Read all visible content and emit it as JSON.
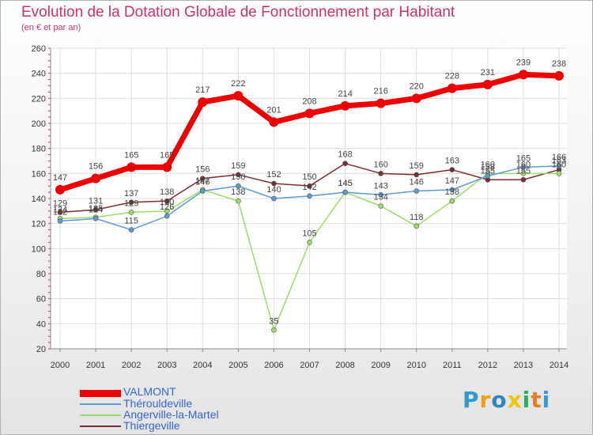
{
  "title": "Evolution de la Dotation Globale de Fonctionnement par Habitant",
  "subtitle": "(en € et par an)",
  "logo": {
    "text": "Proxiti",
    "colors": [
      "#3399cc",
      "#f39c12",
      "#2e86c1",
      "#f1c40f",
      "#27ae60",
      "#e67e22",
      "#3498db"
    ]
  },
  "chart_data": {
    "type": "line",
    "title": "Evolution de la Dotation Globale de Fonctionnement par Habitant",
    "subtitle": "(en € et par an)",
    "x": [
      "2000",
      "2001",
      "2002",
      "2003",
      "2004",
      "2005",
      "2006",
      "2007",
      "2008",
      "2009",
      "2010",
      "2011",
      "2012",
      "2013",
      "2014"
    ],
    "yticks": [
      20,
      40,
      60,
      80,
      100,
      120,
      140,
      160,
      180,
      200,
      220,
      240,
      260
    ],
    "ylim": [
      20,
      260
    ],
    "grid": true,
    "legend_position": "bottom-left",
    "series": [
      {
        "name": "VALMONT",
        "color": "#ee0000",
        "values": [
          147,
          156,
          165,
          165,
          217,
          222,
          201,
          208,
          214,
          216,
          220,
          228,
          231,
          239,
          238
        ],
        "labels": [
          "147",
          "156",
          "165",
          "165",
          "217",
          "222",
          "201",
          "208",
          "214",
          "216",
          "220",
          "228",
          "231",
          "239",
          "238"
        ]
      },
      {
        "name": "Thérouldeville",
        "color": "#5b9bd5",
        "values": [
          122,
          124,
          115,
          126,
          146,
          150,
          140,
          142,
          145,
          143,
          146,
          147,
          158,
          165,
          166
        ],
        "labels": [
          "122",
          "124",
          "115",
          "126",
          "146",
          "150",
          "140",
          "142",
          "145",
          "143",
          "146",
          "147",
          "158",
          "165",
          "166"
        ]
      },
      {
        "name": "Angerville-la-Martel",
        "color": "#99dd66",
        "values": [
          124,
          125,
          129,
          130,
          147,
          138,
          35,
          105,
          145,
          134,
          118,
          138,
          160,
          160,
          160
        ],
        "labels": [
          "124",
          "125",
          "129",
          "130",
          "147",
          "138",
          "35",
          "105",
          "145",
          "134",
          "118",
          "138",
          "160",
          "160",
          "160"
        ]
      },
      {
        "name": "Thiergeville",
        "color": "#7b2d2d",
        "values": [
          129,
          131,
          137,
          138,
          156,
          159,
          152,
          150,
          168,
          160,
          159,
          163,
          155,
          155,
          163
        ],
        "labels": [
          "129",
          "131",
          "137",
          "138",
          "156",
          "159",
          "152",
          "150",
          "168",
          "160",
          "159",
          "163",
          "155",
          "155",
          "163"
        ]
      }
    ]
  }
}
